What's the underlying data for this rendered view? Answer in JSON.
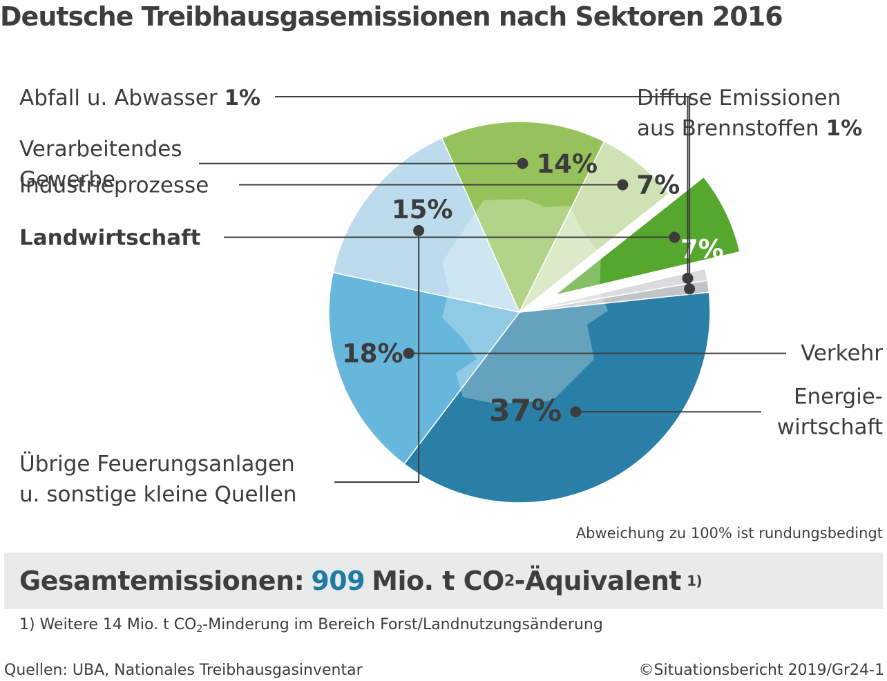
{
  "chart_data": {
    "type": "pie",
    "title": "Deutsche Treibhausgasemissionen nach Sektoren 2016",
    "slices": [
      {
        "name": "Energiewirtschaft",
        "label_lines": [
          "Energie-",
          "wirtschaft"
        ],
        "value": 37,
        "value_label": "37%",
        "color": "#2a7fa6"
      },
      {
        "name": "Verkehr",
        "label_lines": [
          "Verkehr"
        ],
        "value": 18,
        "value_label": "18%",
        "color": "#67b6dc"
      },
      {
        "name": "Übrige Feuerungsanlagen u. sonstige kleine Quellen",
        "label_lines": [
          "Übrige Feuerungsanlagen",
          "u. sonstige kleine Quellen"
        ],
        "value": 15,
        "value_label": "15%",
        "color": "#bcdcee"
      },
      {
        "name": "Verarbeitendes Gewerbe",
        "label_lines": [
          "Verarbeitendes",
          "Gewerbe"
        ],
        "value": 14,
        "value_label": "14%",
        "color": "#96c25c"
      },
      {
        "name": "Industrieprozesse",
        "label_lines": [
          "Industrieprozesse"
        ],
        "value": 7,
        "value_label": "7%",
        "color": "#cfe2b4"
      },
      {
        "name": "Landwirtschaft",
        "label_lines": [
          "Landwirtschaft"
        ],
        "value": 7,
        "value_label": "7%",
        "color": "#56a72d",
        "exploded": true
      },
      {
        "name": "Abfall u. Abwasser",
        "label_lines": [
          "Abfall u. Abwasser"
        ],
        "value": 1,
        "value_label": "1%",
        "color": "#d9dbdc"
      },
      {
        "name": "Diffuse Emissionen aus Brennstoffen",
        "label_lines": [
          "Diffuse Emissionen",
          "aus Brennstoffen"
        ],
        "value": 1,
        "value_label": "1%",
        "color": "#c2c5c7"
      }
    ],
    "note": "Abweichung zu 100% ist rundungsbedingt"
  },
  "total": {
    "prefix": "Gesamtemissionen:",
    "value": "909",
    "unit_before": "Mio. t CO",
    "unit_sub": "2",
    "unit_after": "-Äquivalent",
    "footnote_mark": "1)"
  },
  "footnote": {
    "before": "1) Weitere 14 Mio. t CO",
    "sub": "2",
    "after": "-Minderung im Bereich Forst/Landnutzungsänderung"
  },
  "source": "Quellen: UBA, Nationales Treibhausgasinventar",
  "copyright": "©Situationsbericht 2019/Gr24-1"
}
